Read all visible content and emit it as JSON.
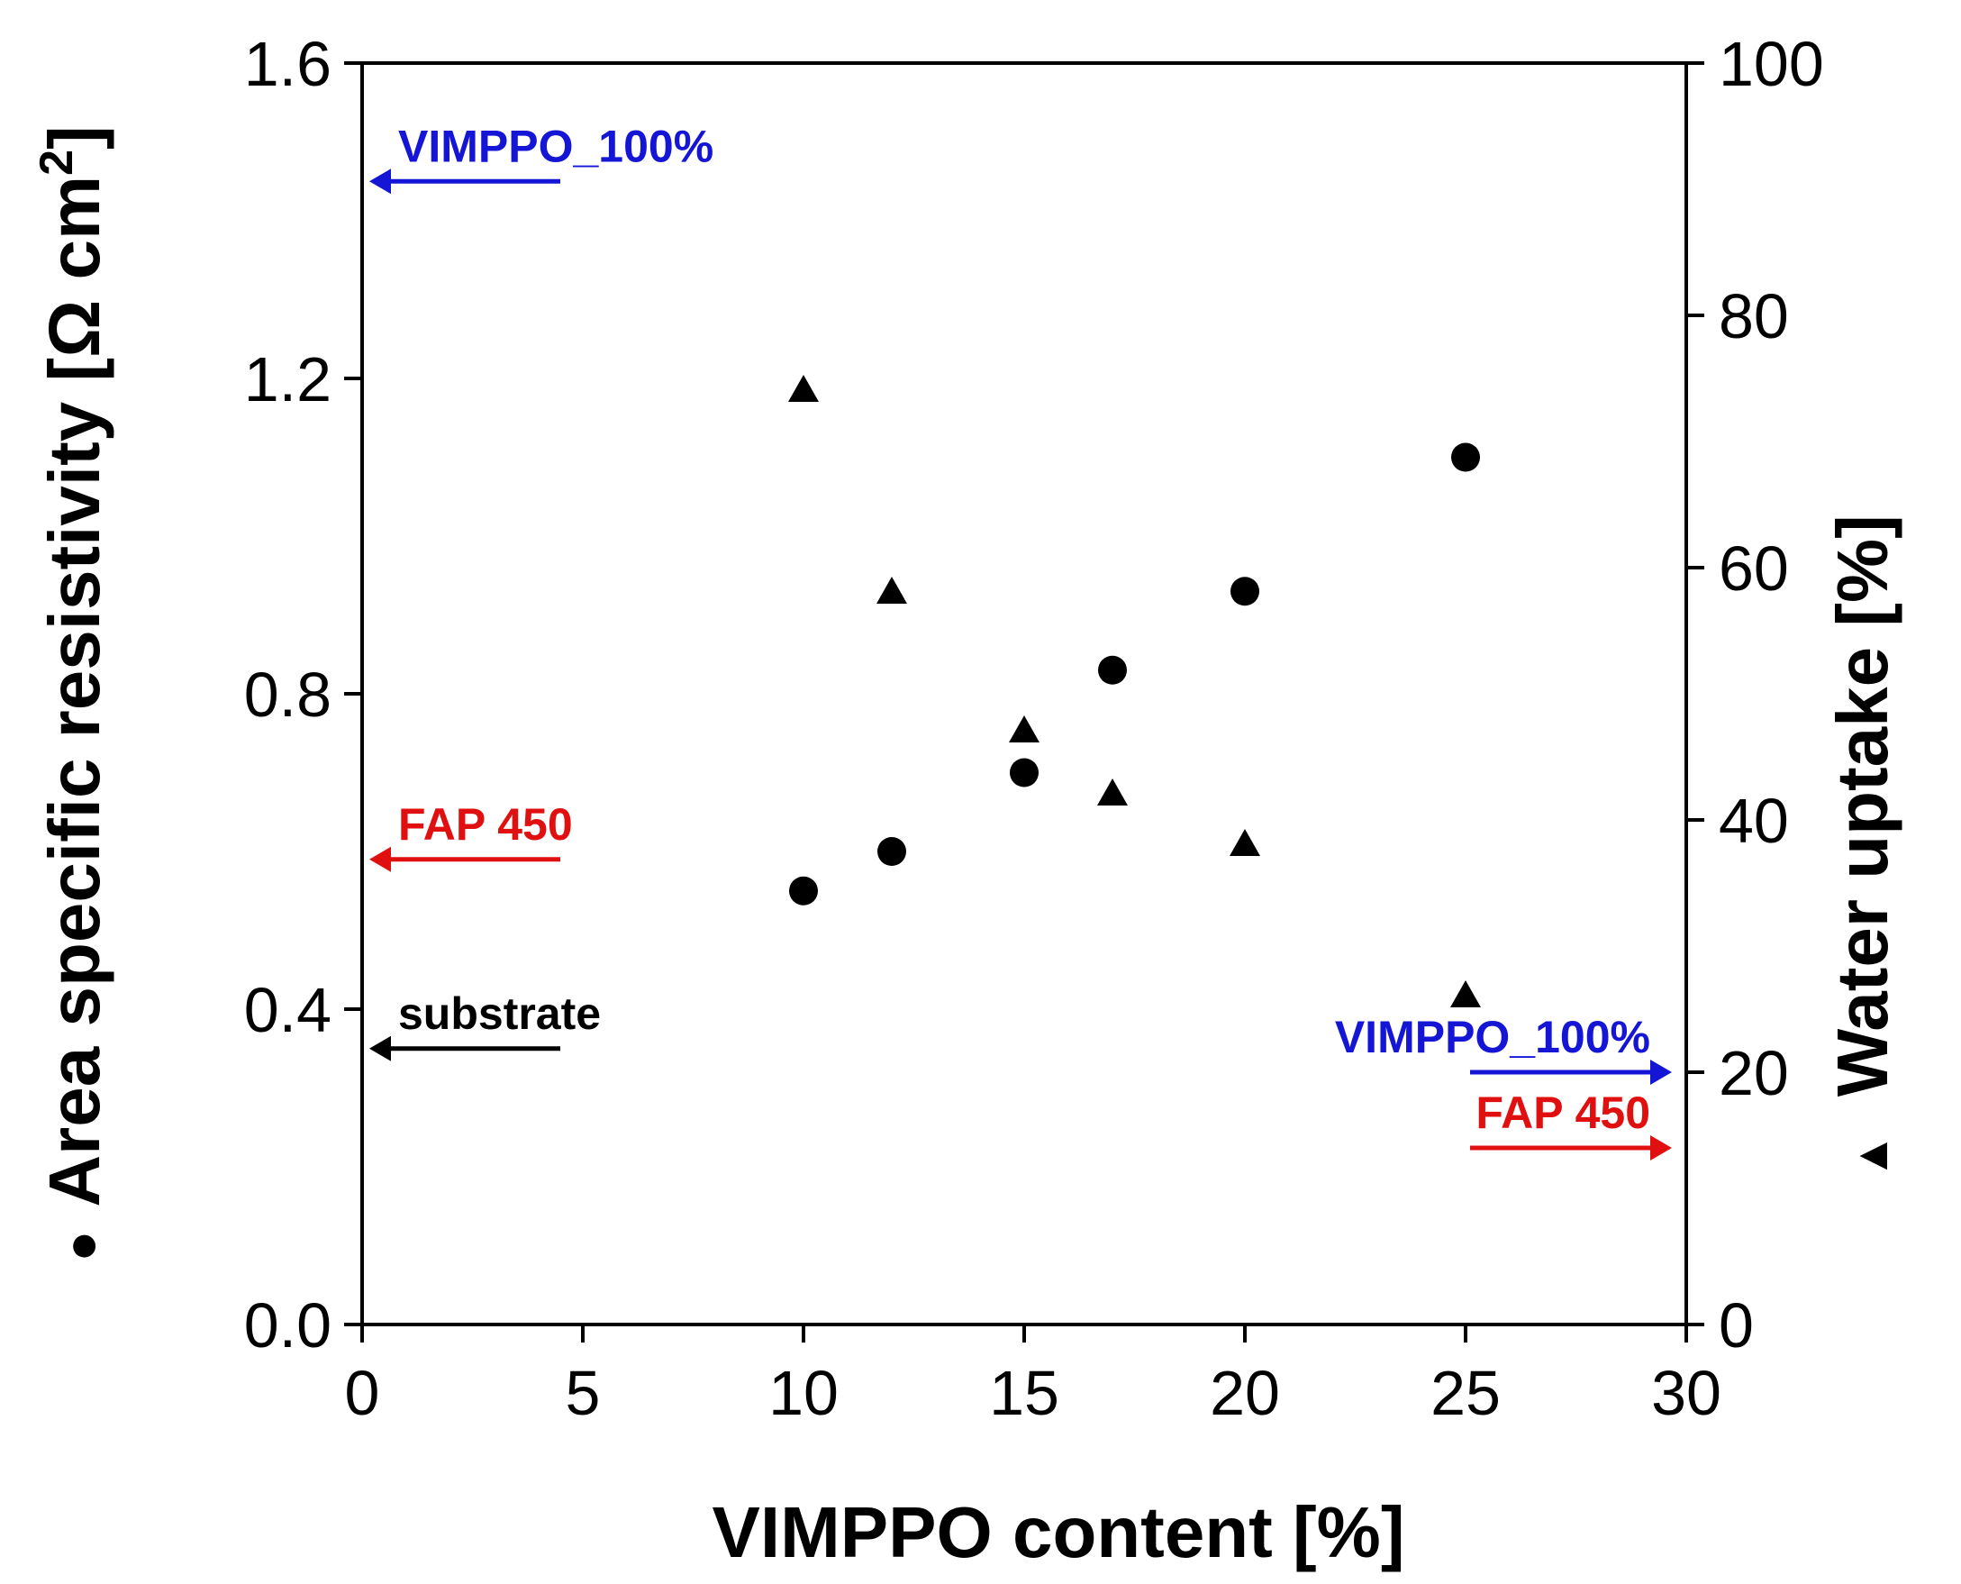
{
  "chart_data": {
    "type": "scatter",
    "xlabel": "VIMPPO content [%]",
    "ylabel_left": {
      "marker": "●",
      "text": "Area specific resistivity [Ω cm",
      "superscript": "2",
      "close": "]"
    },
    "ylabel_right": {
      "marker": "▲",
      "text": "Water uptake [%]"
    },
    "xlim": [
      0,
      30
    ],
    "ylim_left": [
      0,
      1.6
    ],
    "ylim_right": [
      0,
      100
    ],
    "xticks": [
      "0",
      "5",
      "10",
      "15",
      "20",
      "25",
      "30"
    ],
    "yticks_left": [
      "0.0",
      "0.4",
      "0.8",
      "1.2",
      "1.6"
    ],
    "yticks_right": [
      "0",
      "20",
      "40",
      "60",
      "80",
      "100"
    ],
    "series": [
      {
        "name": "Area specific resistivity",
        "axis": "left",
        "marker": "circle",
        "x": [
          10,
          12,
          15,
          17,
          20,
          25
        ],
        "y": [
          0.55,
          0.6,
          0.7,
          0.83,
          0.93,
          1.1
        ]
      },
      {
        "name": "Water uptake",
        "axis": "right",
        "marker": "triangle",
        "x": [
          10,
          12,
          15,
          17,
          20,
          25
        ],
        "y": [
          74,
          58,
          47,
          42,
          38,
          26
        ]
      }
    ],
    "annotations": [
      {
        "text": "VIMPPO_100%",
        "axis": "left",
        "value": 1.45,
        "direction": "left",
        "color": "#1515d6"
      },
      {
        "text": "FAP 450",
        "axis": "left",
        "value": 0.59,
        "direction": "left",
        "color": "#e01010"
      },
      {
        "text": "substrate",
        "axis": "left",
        "value": 0.35,
        "direction": "left",
        "color": "#000000"
      },
      {
        "text": "VIMPPO_100%",
        "axis": "right",
        "value": 20,
        "direction": "right",
        "color": "#1515d6"
      },
      {
        "text": "FAP 450",
        "axis": "right",
        "value": 14,
        "direction": "right",
        "color": "#e01010"
      }
    ]
  }
}
